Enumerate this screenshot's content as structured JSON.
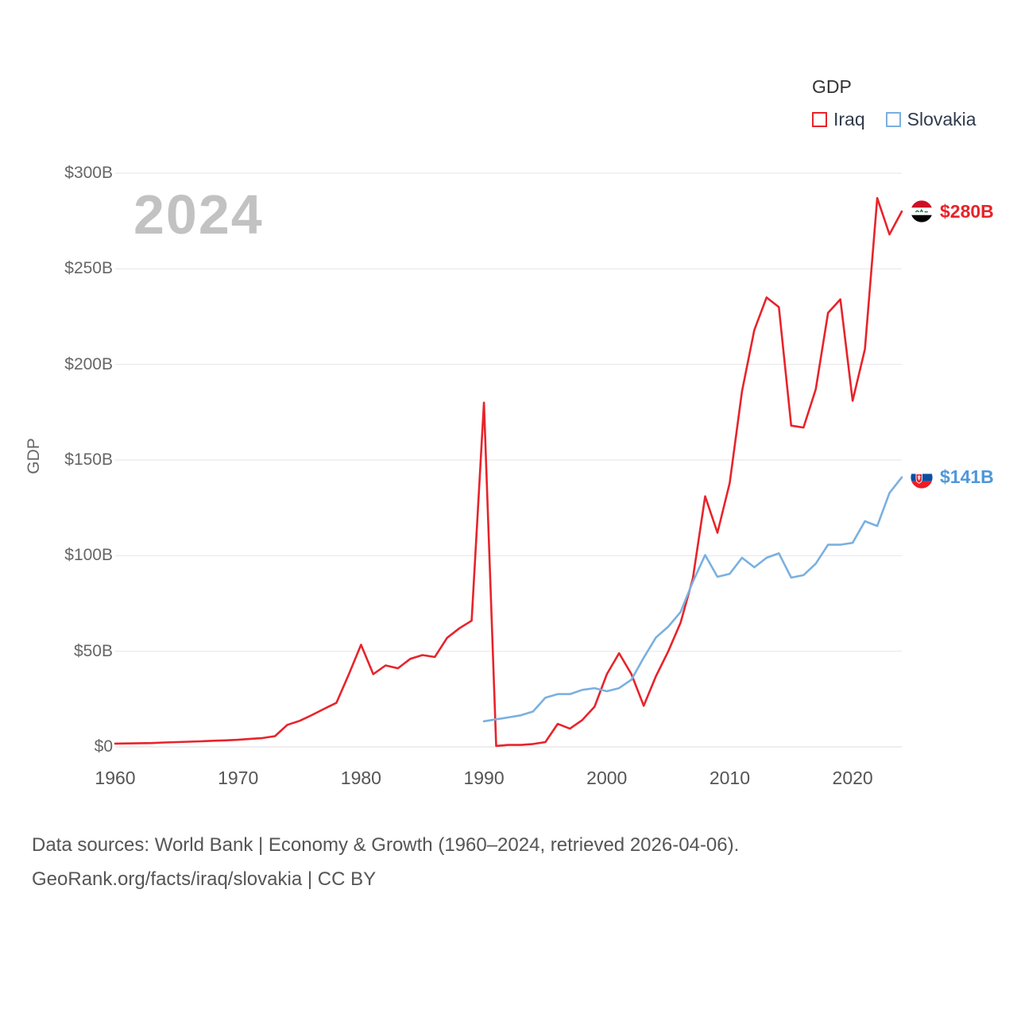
{
  "page": {
    "watermark": "2024",
    "y_axis_title": "GDP",
    "footer": {
      "line1": "Data sources: World Bank | Economy & Growth (1960–2024, retrieved 2026-04-06).",
      "line2": "GeoRank.org/facts/iraq/slovakia | CC BY"
    }
  },
  "legend": {
    "title": "GDP",
    "items": [
      {
        "label": "Iraq",
        "color": "#e8232a"
      },
      {
        "label": "Slovakia",
        "color": "#7ab0e0"
      }
    ]
  },
  "end_labels": [
    {
      "series": "Iraq",
      "label": "$280B",
      "color": "#e8232a",
      "flag": "iraq-flag-icon"
    },
    {
      "series": "Slovakia",
      "label": "$141B",
      "color": "#4f97d9",
      "flag": "slovakia-flag-icon"
    }
  ],
  "chart_data": {
    "type": "line",
    "title": "GDP",
    "xlabel": "",
    "ylabel": "GDP",
    "xlim": [
      1960,
      2024
    ],
    "ylim": [
      0,
      300
    ],
    "grid": true,
    "legend_position": "top-right",
    "x_ticks": [
      1960,
      1970,
      1980,
      1990,
      2000,
      2010,
      2020
    ],
    "y_tick_values": [
      0,
      50,
      100,
      150,
      200,
      250,
      300
    ],
    "y_ticks": [
      "$0",
      "$50B",
      "$100B",
      "$150B",
      "$200B",
      "$250B",
      "$300B"
    ],
    "series": [
      {
        "name": "Iraq",
        "color": "#e8232a",
        "x": [
          1960,
          1961,
          1962,
          1963,
          1964,
          1965,
          1966,
          1967,
          1968,
          1969,
          1970,
          1971,
          1972,
          1973,
          1974,
          1975,
          1976,
          1977,
          1978,
          1979,
          1980,
          1981,
          1982,
          1983,
          1984,
          1985,
          1986,
          1987,
          1988,
          1989,
          1990,
          1991,
          1992,
          1993,
          1994,
          1995,
          1996,
          1997,
          1998,
          1999,
          2000,
          2001,
          2002,
          2003,
          2004,
          2005,
          2006,
          2007,
          2008,
          2009,
          2010,
          2011,
          2012,
          2013,
          2014,
          2015,
          2016,
          2017,
          2018,
          2019,
          2020,
          2021,
          2022,
          2023,
          2024
        ],
        "values": [
          1.7,
          1.8,
          1.9,
          2.0,
          2.3,
          2.5,
          2.7,
          2.9,
          3.2,
          3.4,
          3.7,
          4.2,
          4.6,
          5.6,
          11.5,
          13.6,
          16.6,
          19.9,
          23.0,
          37.8,
          53.4,
          38.0,
          42.6,
          41.1,
          46.0,
          48.0,
          47.0,
          57.0,
          62.0,
          66.0,
          180.0,
          0.5,
          1.0,
          1.0,
          1.5,
          2.5,
          12.0,
          9.5,
          14.0,
          21.0,
          38.0,
          49.0,
          38.0,
          21.5,
          37.0,
          50.0,
          65.0,
          88.0,
          131.0,
          112.0,
          138.0,
          186.0,
          218.0,
          235.0,
          230.0,
          168.0,
          167.0,
          187.0,
          227.0,
          234.0,
          181.0,
          208.0,
          287.0,
          268.0,
          280.0
        ]
      },
      {
        "name": "Slovakia",
        "color": "#7ab0e0",
        "x": [
          1990,
          1991,
          1992,
          1993,
          1994,
          1995,
          1996,
          1997,
          1998,
          1999,
          2000,
          2001,
          2002,
          2003,
          2004,
          2005,
          2006,
          2007,
          2008,
          2009,
          2010,
          2011,
          2012,
          2013,
          2014,
          2015,
          2016,
          2017,
          2018,
          2019,
          2020,
          2021,
          2022,
          2023,
          2024
        ],
        "values": [
          13.4,
          14.4,
          15.4,
          16.5,
          18.5,
          25.7,
          27.6,
          27.6,
          29.8,
          30.7,
          29.1,
          30.7,
          35.1,
          46.6,
          57.2,
          62.9,
          70.5,
          86.3,
          100.3,
          88.9,
          90.5,
          98.9,
          93.9,
          98.9,
          101.2,
          88.5,
          89.8,
          95.8,
          105.7,
          105.7,
          106.7,
          118.0,
          115.5,
          132.8,
          141.0
        ]
      }
    ]
  }
}
